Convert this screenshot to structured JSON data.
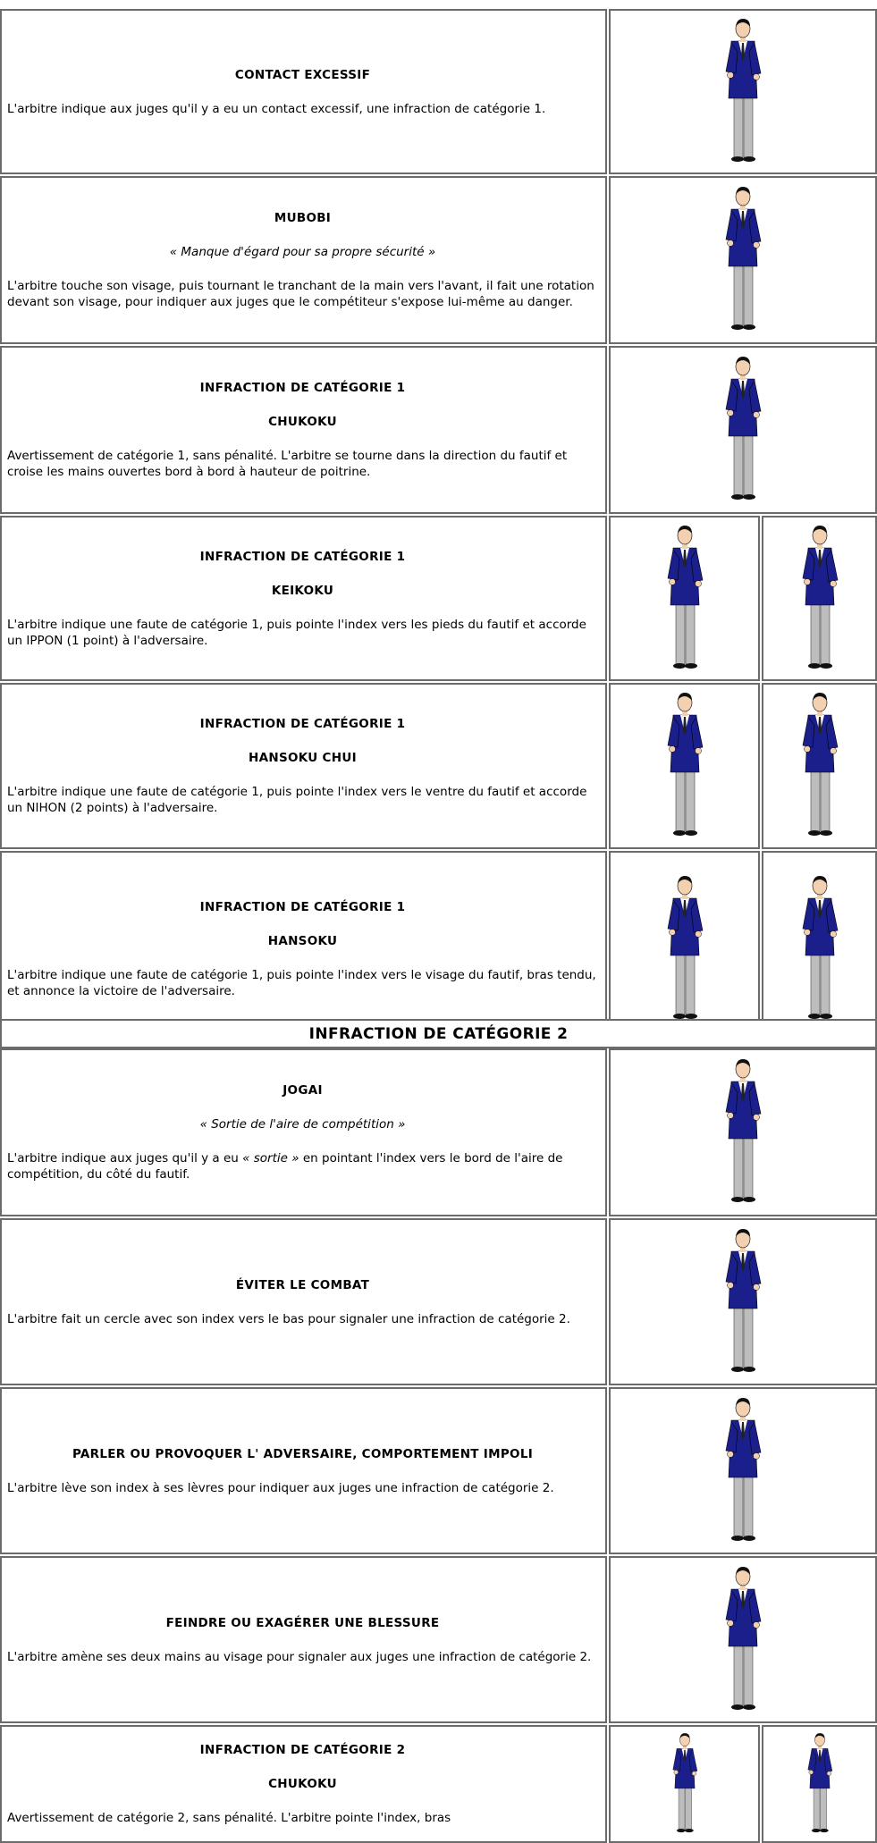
{
  "section_header": "INFRACTION DE CATÉGORIE 2",
  "rows": [
    {
      "title": "CONTACT EXCESSIF",
      "description": " L'arbitre indique aux juges qu'il y a eu un contact excessif, une infraction de catégorie 1."
    },
    {
      "title": "MUBOBI",
      "subtitle": "« Manque d'égard pour sa propre sécurité »",
      "description": "L'arbitre touche son visage, puis tournant le tranchant de la main vers l'avant, il fait une rotation devant son visage, pour indiquer aux juges que le compétiteur s'expose lui-même au danger."
    },
    {
      "heading": "INFRACTION DE CATÉGORIE 1",
      "title": "CHUKOKU",
      "description": "Avertissement de catégorie 1, sans pénalité. L'arbitre se tourne dans  la direction du fautif et croise les mains ouvertes bord à bord à hauteur de poitrine."
    },
    {
      "heading": "INFRACTION DE CATÉGORIE 1",
      "title": "KEIKOKU",
      "description": "L'arbitre indique une faute de catégorie 1, puis pointe l'index vers les pieds du fautif et accorde un IPPON (1 point) à l'adversaire."
    },
    {
      "heading": "INFRACTION DE CATÉGORIE 1",
      "title": "HANSOKU CHUI",
      "description": "L'arbitre indique une faute de catégorie 1, puis pointe l'index vers le ventre  du fautif et accorde un NIHON (2 points) à l'adversaire."
    },
    {
      "heading": "INFRACTION DE CATÉGORIE 1",
      "title": "HANSOKU",
      "description": "L'arbitre indique une faute de catégorie 1, puis pointe l'index vers le visage du fautif, bras tendu, et annonce la victoire de l'adversaire."
    },
    {
      "title": "JOGAI",
      "subtitle": "« Sortie de l'aire de compétition »",
      "description": [
        "L'arbitre indique aux juges qu'il y a eu ",
        "« sortie »",
        " en pointant l'index vers le bord de l'aire de compétition, du côté du fautif."
      ]
    },
    {
      "title": "ÉVITER LE COMBAT",
      "description": "L'arbitre fait un cercle avec son index vers le bas pour signaler une infraction de catégorie 2."
    },
    {
      "title": "PARLER OU PROVOQUER L' ADVERSAIRE, COMPORTEMENT IMPOLI",
      "description": "L'arbitre lève son index à ses lèvres pour indiquer aux juges une infraction de catégorie 2."
    },
    {
      "title": "FEINDRE OU EXAGÉRER UNE BLESSURE",
      "description": "L'arbitre amène ses deux mains au visage pour signaler aux juges une infraction de catégorie 2."
    },
    {
      "heading": "INFRACTION DE CATÉGORIE 2",
      "title": "CHUKOKU",
      "description": "Avertissement de catégorie 2, sans pénalité. L'arbitre pointe l'index, bras"
    }
  ]
}
